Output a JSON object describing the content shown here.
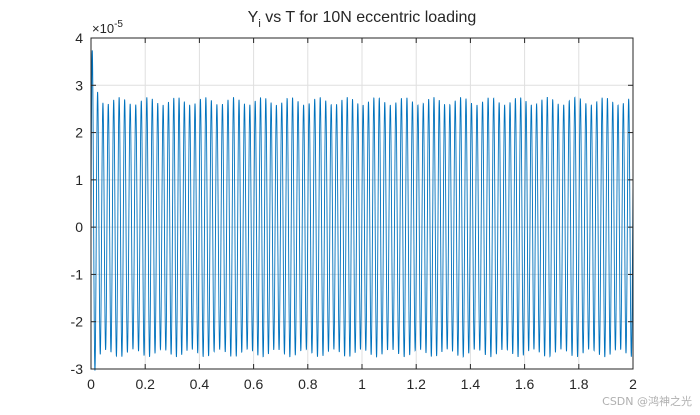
{
  "chart_data": {
    "type": "line",
    "title_main": "Y",
    "title_sub": "i",
    "title_rest": " vs T for 10N eccentric loading",
    "xlim": [
      0,
      2
    ],
    "ylim": [
      -3,
      4
    ],
    "exponent_base": "×10",
    "exponent_power": "-5",
    "grid": true,
    "x_ticks": [
      "0",
      "0.2",
      "0.4",
      "0.6",
      "0.8",
      "1",
      "1.2",
      "1.4",
      "1.6",
      "1.8",
      "2"
    ],
    "x_tick_values": [
      0,
      0.2,
      0.4,
      0.6,
      0.8,
      1,
      1.2,
      1.4,
      1.6,
      1.8,
      2
    ],
    "y_ticks": [
      "-3",
      "-2",
      "-1",
      "0",
      "1",
      "2",
      "3",
      "4"
    ],
    "y_tick_values": [
      -3,
      -2,
      -1,
      0,
      1,
      2,
      3,
      4
    ],
    "series": [
      {
        "color": "#0072BD",
        "steady_amplitude": 2.75,
        "initial_peak": 4.0,
        "oscillation_frequency_hz": 50,
        "beat_frequency_hz": 9.5
      }
    ]
  },
  "watermark": "CSDN @鸿神之光"
}
